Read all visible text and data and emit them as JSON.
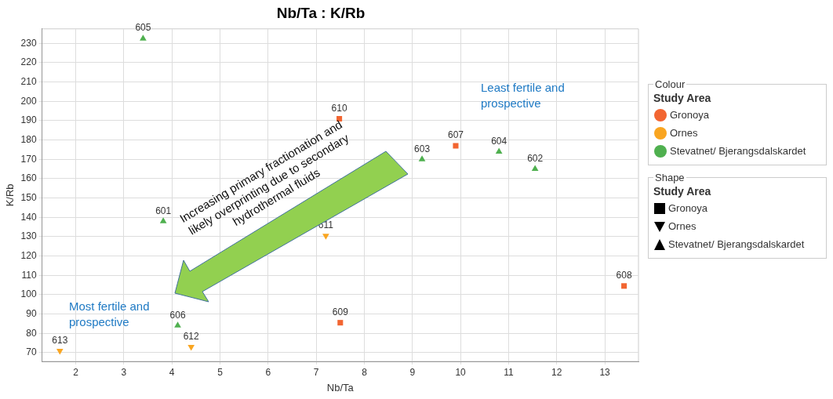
{
  "chart_data": {
    "type": "scatter",
    "title": "Nb/Ta : K/Rb",
    "xlabel": "Nb/Ta",
    "ylabel": "K/Rb",
    "legend_title": "Study Area",
    "legend": "right",
    "grid": true,
    "xlim": [
      1.3,
      13.7
    ],
    "xticks": [
      2,
      3,
      4,
      5,
      6,
      7,
      8,
      9,
      10,
      11,
      12,
      13
    ],
    "ylim": [
      65.5,
      237.5
    ],
    "yticks": [
      70,
      80,
      90,
      100,
      110,
      120,
      130,
      140,
      150,
      160,
      170,
      180,
      190,
      200,
      210,
      220,
      230
    ],
    "series": [
      {
        "name": "Gronoya",
        "color": "#f26531",
        "marker": "square",
        "x": [
          7.48,
          9.9,
          13.4,
          7.5
        ],
        "values": [
          191,
          177,
          104.5,
          85.5
        ]
      },
      {
        "name": "Ornes",
        "color": "#f9a520",
        "marker": "triangle_down",
        "x": [
          7.2,
          4.4,
          1.67
        ],
        "values": [
          130.5,
          73,
          71
        ]
      },
      {
        "name": "Stevatnet/ Bjerangsdalskardet",
        "color": "#4fb04f",
        "marker": "triangle",
        "x": [
          3.4,
          3.82,
          9.2,
          10.8,
          11.55,
          4.12
        ],
        "values": [
          232.5,
          138,
          170,
          174,
          165,
          84
        ]
      }
    ],
    "annotations": [
      "Increasing primary fractionation and likely overprinting due to secondary hydrothermal fluids",
      "Most fertile and prospective",
      "Least fertile and prospective",
      "Colour",
      "Shape",
      {
        "text": "610",
        "x": 7.48,
        "y": 191
      },
      {
        "text": "607",
        "x": 9.9,
        "y": 177
      },
      {
        "text": "608",
        "x": 13.4,
        "y": 104.5
      },
      {
        "text": "609",
        "x": 7.5,
        "y": 85.5
      },
      {
        "text": "611",
        "x": 7.2,
        "y": 130.5
      },
      {
        "text": "612",
        "x": 4.4,
        "y": 73
      },
      {
        "text": "613",
        "x": 1.67,
        "y": 71
      },
      {
        "text": "605",
        "x": 3.4,
        "y": 232.5
      },
      {
        "text": "601",
        "x": 3.82,
        "y": 138
      },
      {
        "text": "603",
        "x": 9.2,
        "y": 170
      },
      {
        "text": "604",
        "x": 10.8,
        "y": 174
      },
      {
        "text": "602",
        "x": 11.55,
        "y": 165
      },
      {
        "text": "606",
        "x": 4.12,
        "y": 84
      }
    ]
  }
}
